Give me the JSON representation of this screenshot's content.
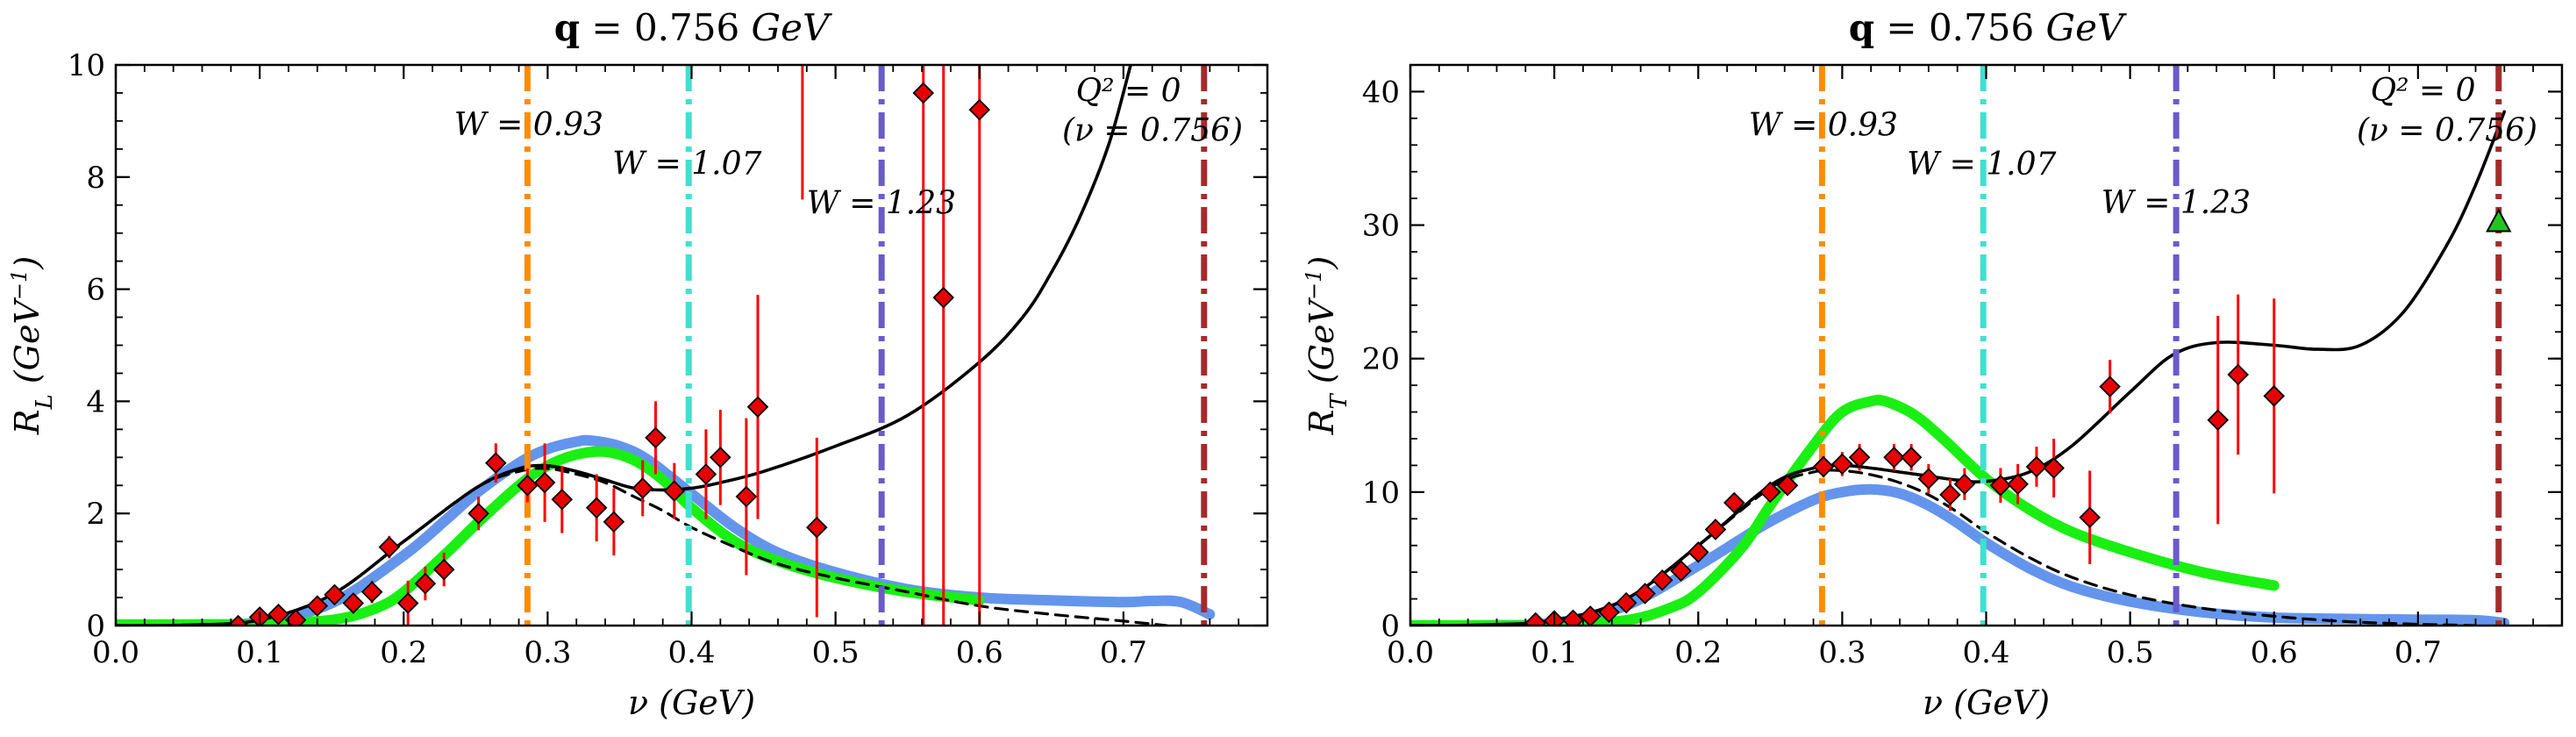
{
  "chart_data": [
    {
      "type": "scatter",
      "title": "q = 0.756 GeV",
      "title_parts": {
        "symbol": "q",
        "eq": " = 0.756 ",
        "unit": "GeV"
      },
      "xlabel": "ν (GeV)",
      "ylabel": "R_L (GeV⁻¹)",
      "ylabel_parts": {
        "main": "R",
        "sub": "L",
        "unit": "(GeV",
        "sup": "−1",
        "close": ")"
      },
      "xlim": [
        0.0,
        0.8
      ],
      "ylim": [
        0,
        10
      ],
      "x_ticks": [
        0.0,
        0.1,
        0.2,
        0.3,
        0.4,
        0.5,
        0.6,
        0.7
      ],
      "x_tick_labels": [
        "0.0",
        "0.1",
        "0.2",
        "0.3",
        "0.4",
        "0.5",
        "0.6",
        "0.7"
      ],
      "y_ticks": [
        0,
        2,
        4,
        6,
        8,
        10
      ],
      "y_tick_labels": [
        "0",
        "2",
        "4",
        "6",
        "8",
        "10"
      ],
      "vlines": [
        {
          "x": 0.286,
          "color": "#ff8c00",
          "label": "W = 0.93",
          "label_x": 0.235,
          "label_y": 8.75
        },
        {
          "x": 0.398,
          "color": "#40e0d0",
          "label": "W = 1.07",
          "label_x": 0.345,
          "label_y": 8.05
        },
        {
          "x": 0.532,
          "color": "#6a5acd",
          "label": "W = 1.23",
          "label_x": 0.48,
          "label_y": 7.35
        },
        {
          "x": 0.756,
          "color": "#a52a2a",
          "label": "Q² = 0",
          "label_x": 0.74,
          "label_y": 9.35,
          "label2": "(ν = 0.756)",
          "label2_x": 0.783,
          "label2_y": 8.65,
          "anchor": "end"
        }
      ],
      "points": [
        {
          "x": 0.085,
          "y": 0.0,
          "err": 0.05
        },
        {
          "x": 0.1,
          "y": 0.15,
          "err": 0.1
        },
        {
          "x": 0.113,
          "y": 0.2,
          "err": 0.1
        },
        {
          "x": 0.125,
          "y": 0.1,
          "err": 0.1
        },
        {
          "x": 0.14,
          "y": 0.35,
          "err": 0.1
        },
        {
          "x": 0.152,
          "y": 0.55,
          "err": 0.15
        },
        {
          "x": 0.165,
          "y": 0.4,
          "err": 0.15
        },
        {
          "x": 0.178,
          "y": 0.6,
          "err": 0.2
        },
        {
          "x": 0.19,
          "y": 1.4,
          "err": 0.2
        },
        {
          "x": 0.203,
          "y": 0.4,
          "err": 0.4
        },
        {
          "x": 0.215,
          "y": 0.75,
          "err": 0.3
        },
        {
          "x": 0.228,
          "y": 1.0,
          "err": 0.3
        },
        {
          "x": 0.252,
          "y": 2.0,
          "err": 0.3
        },
        {
          "x": 0.264,
          "y": 2.9,
          "err": 0.35
        },
        {
          "x": 0.286,
          "y": 2.5,
          "err": 0.3
        },
        {
          "x": 0.298,
          "y": 2.55,
          "err": 0.7
        },
        {
          "x": 0.31,
          "y": 2.25,
          "err": 0.6
        },
        {
          "x": 0.334,
          "y": 2.1,
          "err": 0.6
        },
        {
          "x": 0.346,
          "y": 1.85,
          "err": 0.6
        },
        {
          "x": 0.366,
          "y": 2.45,
          "err": 0.5
        },
        {
          "x": 0.375,
          "y": 3.35,
          "err": 0.65
        },
        {
          "x": 0.388,
          "y": 2.4,
          "err": 0.5
        },
        {
          "x": 0.41,
          "y": 2.7,
          "err": 0.8
        },
        {
          "x": 0.42,
          "y": 3.0,
          "err": 0.85
        },
        {
          "x": 0.438,
          "y": 2.3,
          "err": 1.4
        },
        {
          "x": 0.446,
          "y": 3.9,
          "err": 2.0
        },
        {
          "x": 0.487,
          "y": 1.75,
          "err": 1.6
        },
        {
          "x": 0.561,
          "y": 9.5,
          "err": 10
        },
        {
          "x": 0.575,
          "y": 5.85,
          "err": 10
        },
        {
          "x": 0.6,
          "y": 9.2,
          "err": 10
        }
      ],
      "extra_error_bars": [
        {
          "x": 0.477,
          "low": 7.6,
          "high": 10
        }
      ],
      "curves": {
        "black_solid": {
          "x": [
            0.0,
            0.05,
            0.1,
            0.15,
            0.2,
            0.25,
            0.28,
            0.3,
            0.32,
            0.34,
            0.36,
            0.38,
            0.4,
            0.42,
            0.45,
            0.5,
            0.55,
            0.6,
            0.63,
            0.65,
            0.67,
            0.69,
            0.705
          ],
          "y": [
            0,
            0.01,
            0.1,
            0.55,
            1.5,
            2.45,
            2.8,
            2.85,
            2.75,
            2.6,
            2.45,
            2.42,
            2.45,
            2.55,
            2.75,
            3.2,
            3.75,
            4.7,
            5.5,
            6.3,
            7.3,
            8.6,
            10.0
          ]
        },
        "black_dashed": {
          "x": [
            0.0,
            0.05,
            0.1,
            0.15,
            0.2,
            0.25,
            0.28,
            0.3,
            0.32,
            0.34,
            0.36,
            0.38,
            0.4,
            0.43,
            0.46,
            0.5,
            0.55,
            0.6,
            0.65,
            0.7,
            0.73
          ],
          "y": [
            0,
            0.01,
            0.1,
            0.55,
            1.5,
            2.45,
            2.75,
            2.8,
            2.7,
            2.55,
            2.3,
            2.05,
            1.75,
            1.4,
            1.1,
            0.85,
            0.6,
            0.35,
            0.2,
            0.08,
            0.0
          ]
        },
        "blue": {
          "x": [
            0.0,
            0.05,
            0.1,
            0.15,
            0.2,
            0.23,
            0.25,
            0.28,
            0.3,
            0.32,
            0.33,
            0.35,
            0.37,
            0.4,
            0.43,
            0.46,
            0.5,
            0.55,
            0.6,
            0.65,
            0.7,
            0.72,
            0.74,
            0.76
          ],
          "y": [
            0,
            0.01,
            0.06,
            0.4,
            1.25,
            1.9,
            2.35,
            2.9,
            3.15,
            3.28,
            3.3,
            3.2,
            2.95,
            2.35,
            1.75,
            1.3,
            0.95,
            0.65,
            0.5,
            0.45,
            0.42,
            0.44,
            0.42,
            0.2
          ]
        },
        "green": {
          "x": [
            0.0,
            0.05,
            0.1,
            0.15,
            0.18,
            0.2,
            0.23,
            0.25,
            0.28,
            0.3,
            0.32,
            0.34,
            0.36,
            0.38,
            0.4,
            0.43,
            0.46,
            0.5,
            0.55,
            0.6
          ],
          "y": [
            0.02,
            0.02,
            0.03,
            0.1,
            0.3,
            0.6,
            1.3,
            1.8,
            2.5,
            2.85,
            3.05,
            3.1,
            2.95,
            2.6,
            2.1,
            1.5,
            1.15,
            0.85,
            0.6,
            0.45
          ]
        }
      }
    },
    {
      "type": "scatter",
      "title": "q = 0.756 GeV",
      "title_parts": {
        "symbol": "q",
        "eq": " = 0.756 ",
        "unit": "GeV"
      },
      "xlabel": "ν (GeV)",
      "ylabel": "R_T (GeV⁻¹)",
      "ylabel_parts": {
        "main": "R",
        "sub": "T",
        "unit": "(GeV",
        "sup": "−1",
        "close": ")"
      },
      "xlim": [
        0.0,
        0.8
      ],
      "ylim": [
        0,
        42
      ],
      "x_ticks": [
        0.0,
        0.1,
        0.2,
        0.3,
        0.4,
        0.5,
        0.6,
        0.7
      ],
      "x_tick_labels": [
        "0.0",
        "0.1",
        "0.2",
        "0.3",
        "0.4",
        "0.5",
        "0.6",
        "0.7"
      ],
      "y_ticks": [
        0,
        10,
        20,
        30,
        40
      ],
      "y_tick_labels": [
        "0",
        "10",
        "20",
        "30",
        "40"
      ],
      "vlines": [
        {
          "x": 0.286,
          "color": "#ff8c00",
          "label": "W = 0.93",
          "label_x": 0.235,
          "label_y": 36.7
        },
        {
          "x": 0.398,
          "color": "#40e0d0",
          "label": "W = 1.07",
          "label_x": 0.345,
          "label_y": 33.8
        },
        {
          "x": 0.532,
          "color": "#6a5acd",
          "label": "W = 1.23",
          "label_x": 0.48,
          "label_y": 30.9
        },
        {
          "x": 0.756,
          "color": "#a52a2a",
          "label": "Q² = 0",
          "label_x": 0.74,
          "label_y": 39.3,
          "label2": "(ν = 0.756)",
          "label2_x": 0.783,
          "label2_y": 36.3,
          "anchor": "end"
        }
      ],
      "points": [
        {
          "x": 0.087,
          "y": 0.2,
          "err": 0.2
        },
        {
          "x": 0.1,
          "y": 0.35,
          "err": 0.2
        },
        {
          "x": 0.113,
          "y": 0.4,
          "err": 0.2
        },
        {
          "x": 0.125,
          "y": 0.7,
          "err": 0.2
        },
        {
          "x": 0.138,
          "y": 1.0,
          "err": 0.3
        },
        {
          "x": 0.15,
          "y": 1.7,
          "err": 0.3
        },
        {
          "x": 0.163,
          "y": 2.4,
          "err": 0.3
        },
        {
          "x": 0.175,
          "y": 3.4,
          "err": 0.4
        },
        {
          "x": 0.188,
          "y": 4.1,
          "err": 0.5
        },
        {
          "x": 0.2,
          "y": 5.5,
          "err": 0.5
        },
        {
          "x": 0.212,
          "y": 7.2,
          "err": 0.6
        },
        {
          "x": 0.225,
          "y": 9.2,
          "err": 0.6
        },
        {
          "x": 0.25,
          "y": 10.0,
          "err": 0.7
        },
        {
          "x": 0.262,
          "y": 10.5,
          "err": 0.7
        },
        {
          "x": 0.287,
          "y": 11.9,
          "err": 0.8
        },
        {
          "x": 0.3,
          "y": 12.1,
          "err": 0.9
        },
        {
          "x": 0.312,
          "y": 12.6,
          "err": 1.0
        },
        {
          "x": 0.336,
          "y": 12.6,
          "err": 1.0
        },
        {
          "x": 0.348,
          "y": 12.6,
          "err": 1.0
        },
        {
          "x": 0.36,
          "y": 11.0,
          "err": 1.1
        },
        {
          "x": 0.375,
          "y": 9.8,
          "err": 1.2
        },
        {
          "x": 0.385,
          "y": 10.6,
          "err": 1.2
        },
        {
          "x": 0.41,
          "y": 10.5,
          "err": 1.3
        },
        {
          "x": 0.422,
          "y": 10.6,
          "err": 1.5
        },
        {
          "x": 0.435,
          "y": 11.9,
          "err": 1.5
        },
        {
          "x": 0.447,
          "y": 11.8,
          "err": 2.2
        },
        {
          "x": 0.472,
          "y": 8.1,
          "err": 3.5
        },
        {
          "x": 0.486,
          "y": 17.9,
          "err": 2.0
        },
        {
          "x": 0.561,
          "y": 15.4,
          "err": 7.8
        },
        {
          "x": 0.575,
          "y": 18.8,
          "err": 6.0
        },
        {
          "x": 0.6,
          "y": 17.2,
          "err": 7.3
        }
      ],
      "real_photon_point": {
        "x": 0.756,
        "y": 30.2
      },
      "curves": {
        "black_solid": {
          "x": [
            0.0,
            0.05,
            0.1,
            0.15,
            0.2,
            0.25,
            0.28,
            0.3,
            0.32,
            0.34,
            0.36,
            0.38,
            0.4,
            0.43,
            0.46,
            0.5,
            0.53,
            0.56,
            0.6,
            0.63,
            0.66,
            0.69,
            0.72,
            0.74,
            0.76
          ],
          "y": [
            0,
            0.05,
            0.4,
            2.0,
            6.0,
            10.5,
            11.8,
            12.0,
            11.8,
            11.5,
            11.2,
            10.9,
            10.8,
            11.5,
            13.5,
            17.5,
            20.3,
            21.2,
            21.0,
            20.7,
            21.0,
            23.5,
            28.5,
            33.0,
            38.5
          ]
        },
        "black_dashed": {
          "x": [
            0.0,
            0.05,
            0.1,
            0.15,
            0.2,
            0.25,
            0.28,
            0.3,
            0.32,
            0.34,
            0.36,
            0.38,
            0.4,
            0.43,
            0.46,
            0.5,
            0.55,
            0.6,
            0.65,
            0.7,
            0.74
          ],
          "y": [
            0,
            0.05,
            0.4,
            2.0,
            6.0,
            10.3,
            11.5,
            11.6,
            11.3,
            10.7,
            9.8,
            8.5,
            7.0,
            5.1,
            3.6,
            2.3,
            1.3,
            0.7,
            0.3,
            0.1,
            0.0
          ]
        },
        "blue": {
          "x": [
            0.0,
            0.05,
            0.1,
            0.15,
            0.2,
            0.23,
            0.25,
            0.28,
            0.3,
            0.32,
            0.34,
            0.36,
            0.38,
            0.4,
            0.43,
            0.46,
            0.5,
            0.55,
            0.6,
            0.65,
            0.7,
            0.74,
            0.76
          ],
          "y": [
            0,
            0.02,
            0.2,
            1.5,
            4.5,
            6.5,
            7.8,
            9.4,
            10.0,
            10.2,
            9.9,
            9.0,
            7.7,
            6.2,
            4.3,
            2.9,
            1.8,
            1.0,
            0.6,
            0.5,
            0.45,
            0.4,
            0.2
          ]
        },
        "green": {
          "x": [
            0.0,
            0.05,
            0.1,
            0.15,
            0.18,
            0.2,
            0.23,
            0.25,
            0.28,
            0.3,
            0.32,
            0.33,
            0.35,
            0.37,
            0.4,
            0.43,
            0.46,
            0.5,
            0.55,
            0.6
          ],
          "y": [
            0.02,
            0.02,
            0.05,
            0.4,
            1.3,
            2.5,
            5.8,
            9.0,
            13.5,
            16.0,
            16.8,
            16.8,
            15.8,
            14.0,
            11.0,
            8.7,
            7.0,
            5.5,
            4.0,
            3.0
          ]
        }
      }
    }
  ],
  "style": {
    "black": "#000000",
    "blue": "#6495ed",
    "green": "#1aef13",
    "marker_fill": "#e60000",
    "error_bar": "#ff0000",
    "photon_marker": "#22c522"
  }
}
